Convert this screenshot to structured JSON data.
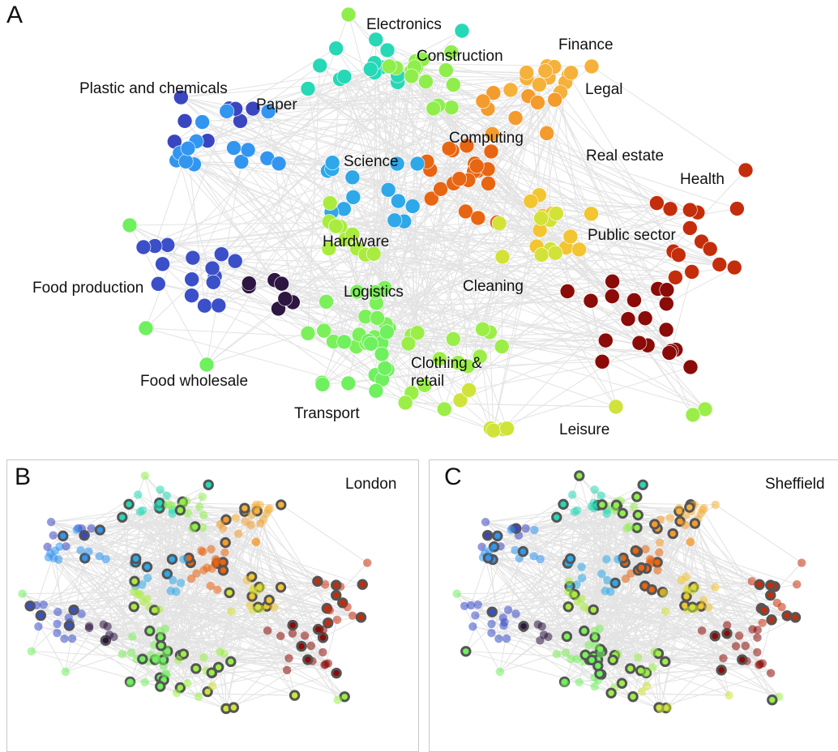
{
  "panel_a": {
    "letter": "A",
    "clusters": [
      {
        "key": "electronics",
        "label": "Electronics",
        "color": "#27d8b6"
      },
      {
        "key": "construction",
        "label": "Construction",
        "color": "#8fee4c"
      },
      {
        "key": "finance",
        "label": "Finance",
        "color": "#f6b13a"
      },
      {
        "key": "legal",
        "label": "Legal",
        "color": "#f39b2d"
      },
      {
        "key": "plastic",
        "label": "Plastic and chemicals",
        "color": "#3a46c0"
      },
      {
        "key": "paper",
        "label": "Paper",
        "color": "#3296f0"
      },
      {
        "key": "computing",
        "label": "Computing",
        "color": "#e86512"
      },
      {
        "key": "science",
        "label": "Science",
        "color": "#2ea8e8"
      },
      {
        "key": "real_estate",
        "label": "Real estate",
        "color": "#f2c531"
      },
      {
        "key": "health",
        "label": "Health",
        "color": "#c42d0b"
      },
      {
        "key": "hardware",
        "label": "Hardware",
        "color": "#a9ec3e"
      },
      {
        "key": "public_sector",
        "label": "Public sector",
        "color": "#8a0b07"
      },
      {
        "key": "food_production",
        "label": "Food production",
        "color": "#2d1641"
      },
      {
        "key": "logistics",
        "label": "Logistics",
        "color": "#7cf05a"
      },
      {
        "key": "cleaning",
        "label": "Cleaning",
        "color": "#d3e236"
      },
      {
        "key": "food_wholesale",
        "label": "Food wholesale",
        "color": "#3b4fc8"
      },
      {
        "key": "clothing",
        "label": "Clothing &\nretail",
        "color": "#9bee48"
      },
      {
        "key": "transport",
        "label": "Transport",
        "color": "#6ff05e"
      },
      {
        "key": "leisure",
        "label": "Leisure",
        "color": "#cfe33a"
      }
    ]
  },
  "panel_b": {
    "letter": "B",
    "city": "London"
  },
  "panel_c": {
    "letter": "C",
    "city": "Sheffield"
  },
  "style": {
    "edge_color": "#e3e3e3",
    "highlight_ring_color": "#555555"
  }
}
